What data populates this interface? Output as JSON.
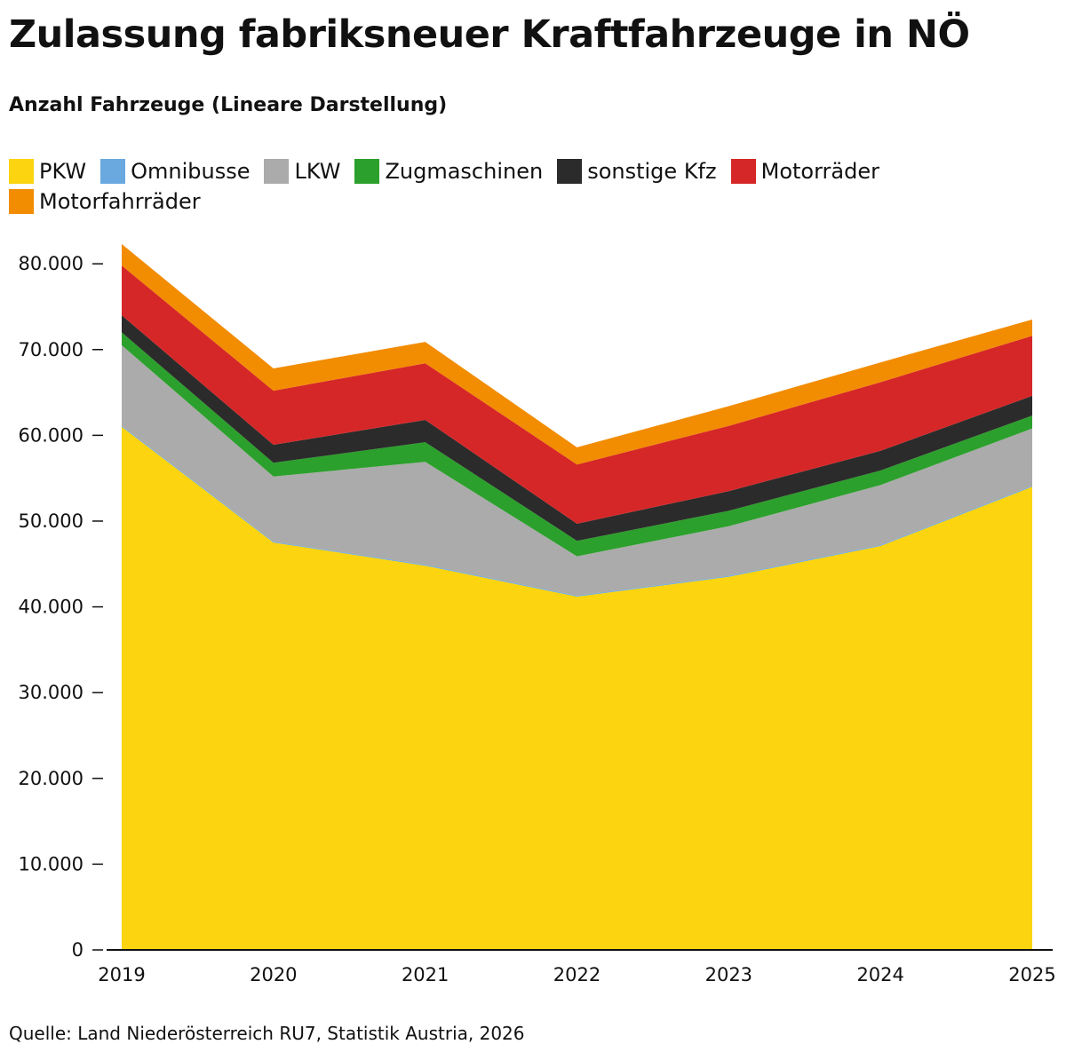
{
  "title": "Zulassung fabriksneuer Kraftfahrzeuge in NÖ",
  "subtitle": "Anzahl Fahrzeuge (Lineare Darstellung)",
  "source": "Quelle: Land Niederösterreich RU7, Statistik Austria, 2026",
  "chart_data": {
    "type": "area",
    "stacked": true,
    "x": [
      "2019",
      "2020",
      "2021",
      "2022",
      "2023",
      "2024",
      "2025"
    ],
    "ylim": [
      0,
      82500
    ],
    "yticks": [
      0,
      10000,
      20000,
      30000,
      40000,
      50000,
      60000,
      70000,
      80000
    ],
    "ytick_labels": [
      "0",
      "10.000",
      "20.000",
      "30.000",
      "40.000",
      "50.000",
      "60.000",
      "70.000",
      "80.000"
    ],
    "legend_position": "top",
    "grid": false,
    "series": [
      {
        "name": "PKW",
        "color": "#fcd40f",
        "values": [
          61000,
          47500,
          44800,
          41200,
          43500,
          47100,
          54000
        ]
      },
      {
        "name": "Omnibusse",
        "color": "#6aa9e0",
        "values": [
          100,
          100,
          100,
          100,
          100,
          100,
          100
        ]
      },
      {
        "name": "LKW",
        "color": "#ababab",
        "values": [
          9400,
          7600,
          12000,
          4600,
          5800,
          7000,
          6700
        ]
      },
      {
        "name": "Zugmaschinen",
        "color": "#2ca02c",
        "values": [
          1500,
          1600,
          2300,
          1800,
          1800,
          1700,
          1500
        ]
      },
      {
        "name": "sonstige Kfz",
        "color": "#2b2b2b",
        "values": [
          2000,
          2100,
          2600,
          2000,
          2300,
          2300,
          2300
        ]
      },
      {
        "name": "Motorräder",
        "color": "#d62728",
        "values": [
          5800,
          6300,
          6600,
          6900,
          7600,
          8000,
          7000
        ]
      },
      {
        "name": "Motorfahrräder",
        "color": "#f28c00",
        "values": [
          2500,
          2600,
          2500,
          2000,
          2300,
          2300,
          1900
        ]
      }
    ]
  }
}
